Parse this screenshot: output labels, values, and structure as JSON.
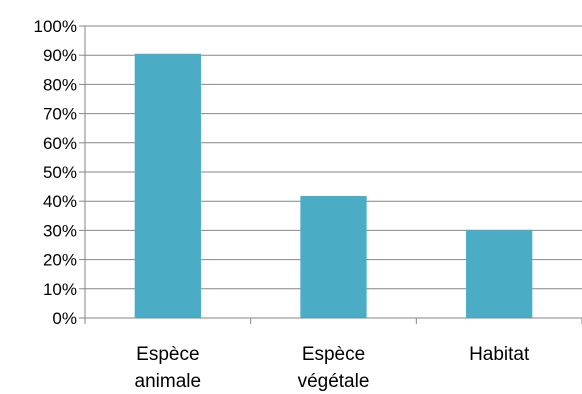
{
  "chart_data": {
    "type": "bar",
    "categories": [
      [
        "Espèce",
        "animale"
      ],
      [
        "Espèce",
        "végétale"
      ],
      [
        "Habitat"
      ]
    ],
    "values": [
      90.5,
      41.8,
      30.2
    ],
    "yticks": [
      "0%",
      "10%",
      "20%",
      "30%",
      "40%",
      "50%",
      "60%",
      "70%",
      "80%",
      "90%",
      "100%"
    ],
    "ylim": [
      0,
      100
    ],
    "grid": true,
    "bar_color": "#4bacc6"
  }
}
